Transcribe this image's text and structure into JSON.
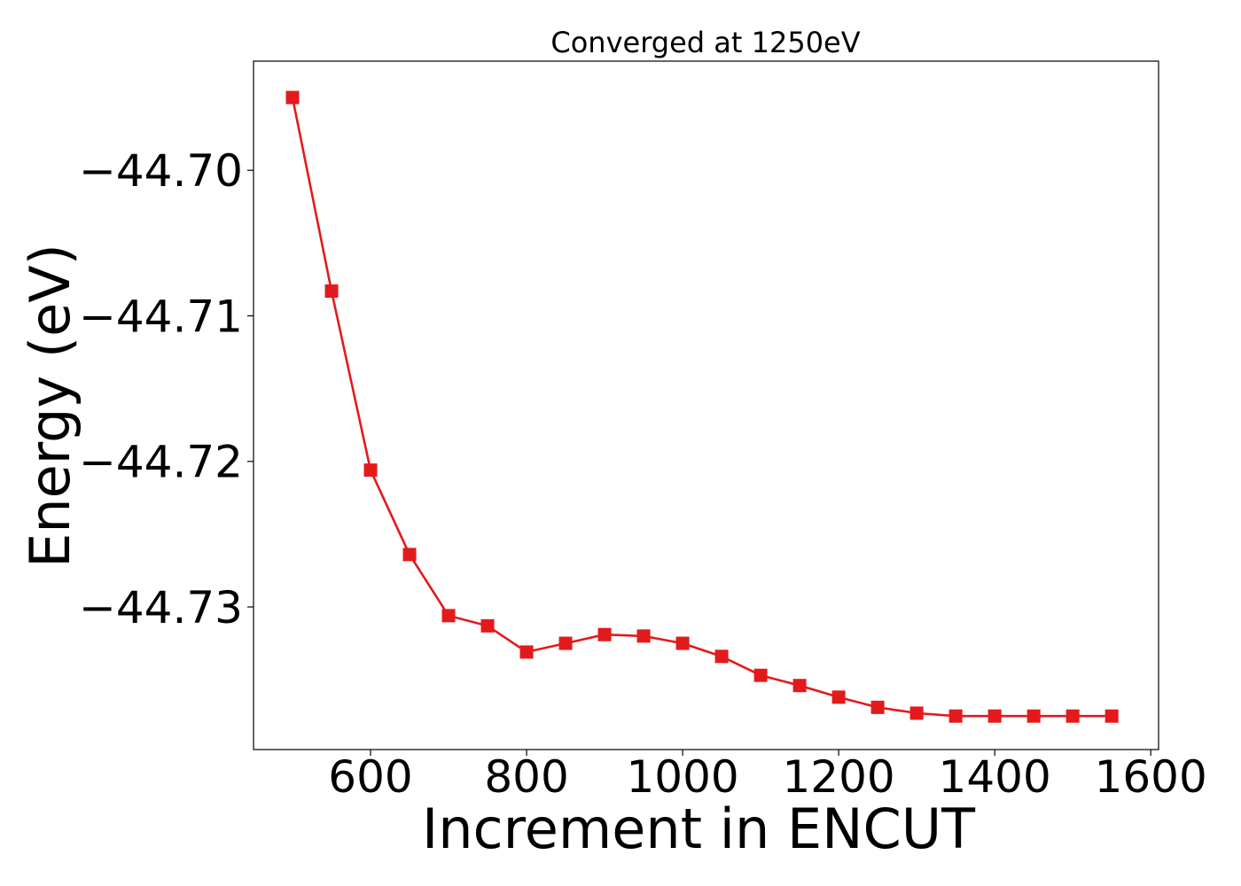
{
  "chart_data": {
    "type": "line",
    "title": "Converged at 1250eV",
    "xlabel": "Increment in ENCUT",
    "ylabel": "Energy (eV)",
    "xlim": [
      450,
      1610
    ],
    "ylim": [
      -44.7398,
      -44.6925
    ],
    "xticks": [
      600,
      800,
      1000,
      1200,
      1400,
      1600
    ],
    "xtick_labels": [
      "600",
      "800",
      "1000",
      "1200",
      "1400",
      "1600"
    ],
    "yticks": [
      -44.7,
      -44.71,
      -44.72,
      -44.73
    ],
    "ytick_labels": [
      "−44.70",
      "−44.71",
      "−44.72",
      "−44.73"
    ],
    "grid": false,
    "legend": "none",
    "marker": "square",
    "color": "#e31a1c",
    "series": [
      {
        "x": [
          500,
          550,
          600,
          650,
          700,
          750,
          800,
          850,
          900,
          950,
          1000,
          1050,
          1100,
          1150,
          1200,
          1250,
          1300,
          1350,
          1400,
          1450,
          1500,
          1550
        ],
        "y": [
          -44.695,
          -44.7083,
          -44.7206,
          -44.7264,
          -44.7306,
          -44.7313,
          -44.7331,
          -44.7325,
          -44.7319,
          -44.732,
          -44.7325,
          -44.7334,
          -44.7347,
          -44.7354,
          -44.7362,
          -44.7369,
          -44.7373,
          -44.7375,
          -44.7375,
          -44.7375,
          -44.7375,
          -44.7375
        ]
      }
    ]
  }
}
